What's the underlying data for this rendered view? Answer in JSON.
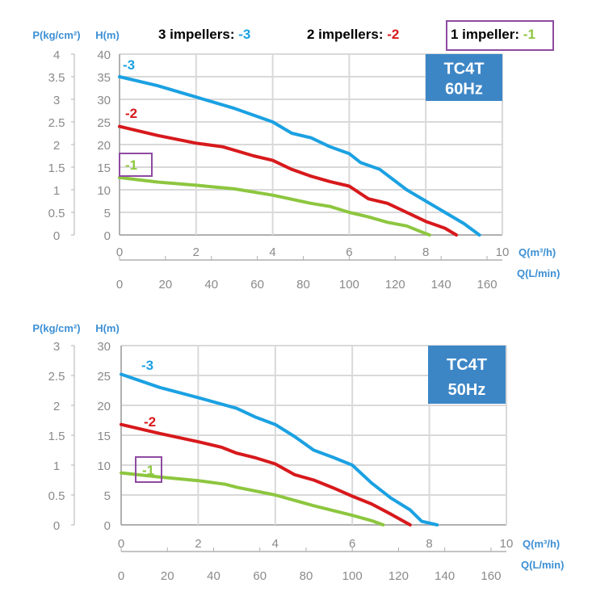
{
  "legend": {
    "items": [
      {
        "label": "3 impellers:",
        "code": "-3",
        "color": "#1ba1e2"
      },
      {
        "label": "2 impellers:",
        "code": "-2",
        "color": "#d7191c"
      },
      {
        "label": "1 impeller:",
        "code": "-1",
        "color": "#8dc63f"
      }
    ],
    "highlight_color": "#8e4ba0"
  },
  "chart_data": [
    {
      "type": "line",
      "badge": [
        "TC4T",
        "60Hz"
      ],
      "badge_color": "#3d86c6",
      "y_label": "H(m)",
      "y2_label": "P(kg/cm²)",
      "x_label": "Q(m³/h)",
      "x2_label": "Q(L/min)",
      "xlim": [
        0,
        10
      ],
      "ylim": [
        0,
        40
      ],
      "y2lim": [
        0,
        4
      ],
      "x2lim": [
        0,
        160
      ],
      "x_ticks": [
        0,
        2,
        4,
        6,
        8,
        10
      ],
      "y_ticks": [
        0,
        5,
        10,
        15,
        20,
        25,
        30,
        35,
        40
      ],
      "y2_ticks": [
        "0",
        "0.5",
        "1",
        "1.5",
        "2",
        "2.5",
        "3",
        "3.5",
        "4"
      ],
      "x2_ticks": [
        0,
        20,
        40,
        60,
        80,
        100,
        120,
        140,
        160
      ],
      "grid": true,
      "series": [
        {
          "name": "-3",
          "color": "#1ba1e2",
          "x": [
            0,
            1,
            2,
            3,
            4,
            4.5,
            5,
            5.5,
            6,
            6.3,
            6.8,
            7.5,
            8,
            8.5,
            9,
            9.4
          ],
          "y": [
            35,
            33,
            30.5,
            28,
            25,
            22.5,
            21.5,
            19.5,
            18,
            16,
            14.5,
            10,
            7.5,
            5,
            2.5,
            0
          ]
        },
        {
          "name": "-2",
          "color": "#d7191c",
          "x": [
            0,
            1,
            2,
            2.7,
            3.5,
            4,
            4.5,
            5,
            5.5,
            6,
            6.5,
            7,
            7.5,
            8,
            8.5,
            8.8
          ],
          "y": [
            24,
            22,
            20.3,
            19.5,
            17.5,
            16.5,
            14.5,
            13,
            11.8,
            10.8,
            8,
            7,
            5,
            3,
            1.5,
            0
          ]
        },
        {
          "name": "-1",
          "color": "#8dc63f",
          "x": [
            0,
            1,
            2,
            3,
            4,
            5,
            5.5,
            6,
            6.5,
            7,
            7.5,
            8,
            8.1
          ],
          "y": [
            12.7,
            11.7,
            11,
            10.2,
            8.8,
            7,
            6.3,
            5,
            4,
            2.8,
            2,
            0.3,
            0
          ]
        }
      ]
    },
    {
      "type": "line",
      "badge": [
        "TC4T",
        "50Hz"
      ],
      "badge_color": "#3d86c6",
      "y_label": "H(m)",
      "y2_label": "P(kg/cm²)",
      "x_label": "Q(m³/h)",
      "x2_label": "Q(L/min)",
      "xlim": [
        0,
        10
      ],
      "ylim": [
        0,
        30
      ],
      "y2lim": [
        0,
        3
      ],
      "x2lim": [
        0,
        160
      ],
      "x_ticks": [
        0,
        2,
        4,
        6,
        8,
        10
      ],
      "y_ticks": [
        0,
        5,
        10,
        15,
        20,
        25,
        30
      ],
      "y2_ticks": [
        "0",
        "0.5",
        "1",
        "1.5",
        "2",
        "2.5",
        "3"
      ],
      "x2_ticks": [
        0,
        20,
        40,
        60,
        80,
        100,
        120,
        140,
        160
      ],
      "grid": true,
      "series": [
        {
          "name": "-3",
          "color": "#1ba1e2",
          "x": [
            0,
            1,
            2,
            3,
            3.5,
            4,
            4.5,
            5,
            5.5,
            6,
            6.5,
            7,
            7.5,
            7.8,
            8.2
          ],
          "y": [
            25.2,
            23,
            21.3,
            19.5,
            18,
            16.8,
            14.8,
            12.5,
            11.3,
            10,
            7,
            4.5,
            2.5,
            0.6,
            0
          ]
        },
        {
          "name": "-2",
          "color": "#d7191c",
          "x": [
            0,
            1,
            2,
            2.6,
            3,
            3.5,
            4,
            4.5,
            5,
            5.5,
            6,
            6.5,
            7,
            7.5
          ],
          "y": [
            16.8,
            15.3,
            13.9,
            13,
            12,
            11.2,
            10.2,
            8.4,
            7.5,
            6.2,
            4.8,
            3.5,
            1.8,
            0
          ]
        },
        {
          "name": "-1",
          "color": "#8dc63f",
          "x": [
            0,
            1,
            2,
            2.7,
            3,
            4,
            5,
            6,
            6.5,
            6.8
          ],
          "y": [
            8.7,
            8,
            7.4,
            6.8,
            6.3,
            5,
            3.2,
            1.6,
            0.7,
            0
          ]
        }
      ]
    }
  ]
}
